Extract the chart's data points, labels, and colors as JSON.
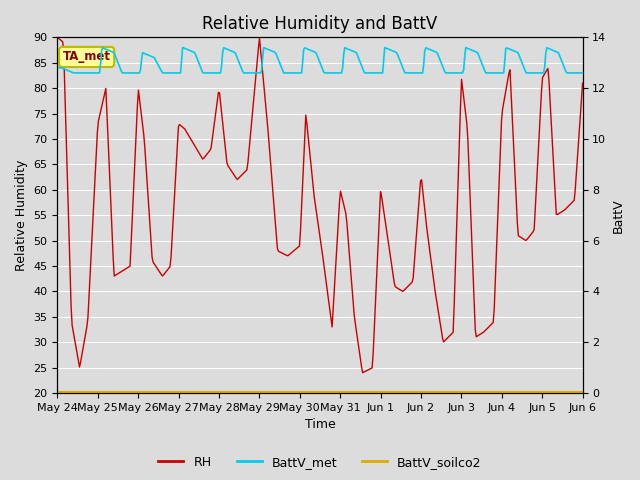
{
  "title": "Relative Humidity and BattV",
  "ylabel_left": "Relative Humidity",
  "ylabel_right": "BattV",
  "xlabel": "Time",
  "ylim_left": [
    20,
    90
  ],
  "ylim_right": [
    0,
    14
  ],
  "bg_color": "#dcdcdc",
  "plot_bg_color": "#dcdcdc",
  "annotation_text": "TA_met",
  "annotation_box_color": "#ffff99",
  "annotation_box_edge": "#bbbb00",
  "x_tick_labels": [
    "May 24",
    "May 25",
    "May 26",
    "May 27",
    "May 28",
    "May 29",
    "May 30",
    "May 31",
    "Jun 1",
    "Jun 2",
    "Jun 3",
    "Jun 4",
    "Jun 5",
    "Jun 6"
  ],
  "rh_color": "#cc0000",
  "battv_met_color": "#00ccee",
  "battv_soilco2_color": "#ddaa00",
  "grid_color": "white",
  "title_fontsize": 12,
  "axis_label_fontsize": 9,
  "tick_fontsize": 8,
  "legend_fontsize": 9,
  "rh_key_days": [
    0,
    0.15,
    0.35,
    0.55,
    0.75,
    1.0,
    1.2,
    1.4,
    1.6,
    1.8,
    2.0,
    2.15,
    2.35,
    2.6,
    2.8,
    3.0,
    3.15,
    3.3,
    3.45,
    3.6,
    3.8,
    4.0,
    4.2,
    4.45,
    4.7,
    5.0,
    5.2,
    5.45,
    5.7,
    6.0,
    6.15,
    6.35,
    6.55,
    6.8,
    7.0,
    7.15,
    7.35,
    7.55,
    7.8,
    8.0,
    8.15,
    8.35,
    8.55,
    8.8,
    9.0,
    9.15,
    9.35,
    9.55,
    9.8,
    10.0,
    10.15,
    10.35,
    10.55,
    10.8,
    11.0,
    11.2,
    11.4,
    11.6,
    11.8,
    12.0,
    12.15,
    12.35,
    12.55,
    12.8,
    13.0
  ],
  "rh_key_vals": [
    90,
    89,
    34,
    25,
    34,
    73,
    80,
    43,
    44,
    45,
    80,
    70,
    46,
    43,
    45,
    73,
    72,
    70,
    68,
    66,
    68,
    80,
    65,
    62,
    64,
    90,
    73,
    48,
    47,
    49,
    75,
    59,
    48,
    33,
    60,
    55,
    35,
    24,
    25,
    60,
    52,
    41,
    40,
    42,
    63,
    52,
    40,
    30,
    32,
    82,
    72,
    31,
    32,
    34,
    75,
    84,
    51,
    50,
    52,
    82,
    84,
    55,
    56,
    58,
    81
  ],
  "battv_met_key_days": [
    0,
    0.05,
    0.1,
    0.4,
    0.6,
    0.9,
    1.0,
    1.05,
    1.1,
    1.4,
    1.6,
    1.9,
    2.0,
    2.05,
    2.1,
    2.4,
    2.6,
    2.9,
    3.0,
    3.05,
    3.1,
    3.4,
    3.6,
    3.9,
    4.0,
    4.05,
    4.1,
    4.4,
    4.6,
    4.9,
    5.0,
    5.05,
    5.1,
    5.4,
    5.6,
    5.9,
    6.0,
    6.05,
    6.1,
    6.4,
    6.6,
    6.9,
    7.0,
    7.05,
    7.1,
    7.4,
    7.6,
    7.9,
    8.0,
    8.05,
    8.1,
    8.4,
    8.6,
    8.9,
    9.0,
    9.05,
    9.1,
    9.4,
    9.6,
    9.9,
    10.0,
    10.05,
    10.1,
    10.4,
    10.6,
    10.9,
    11.0,
    11.05,
    11.1,
    11.4,
    11.6,
    11.9,
    12.0,
    12.05,
    12.1,
    12.4,
    12.6,
    12.9,
    13.0
  ],
  "battv_met_key_vals": [
    84,
    84,
    84,
    83,
    83,
    83,
    83,
    83,
    88,
    87,
    83,
    83,
    83,
    83,
    87,
    86,
    83,
    83,
    83,
    83,
    88,
    87,
    83,
    83,
    83,
    83,
    88,
    87,
    83,
    83,
    83,
    83,
    88,
    87,
    83,
    83,
    83,
    83,
    88,
    87,
    83,
    83,
    83,
    83,
    88,
    87,
    83,
    83,
    83,
    83,
    88,
    87,
    83,
    83,
    83,
    83,
    88,
    87,
    83,
    83,
    83,
    83,
    88,
    87,
    83,
    83,
    83,
    83,
    88,
    87,
    83,
    83,
    83,
    83,
    88,
    87,
    83,
    83,
    83
  ]
}
